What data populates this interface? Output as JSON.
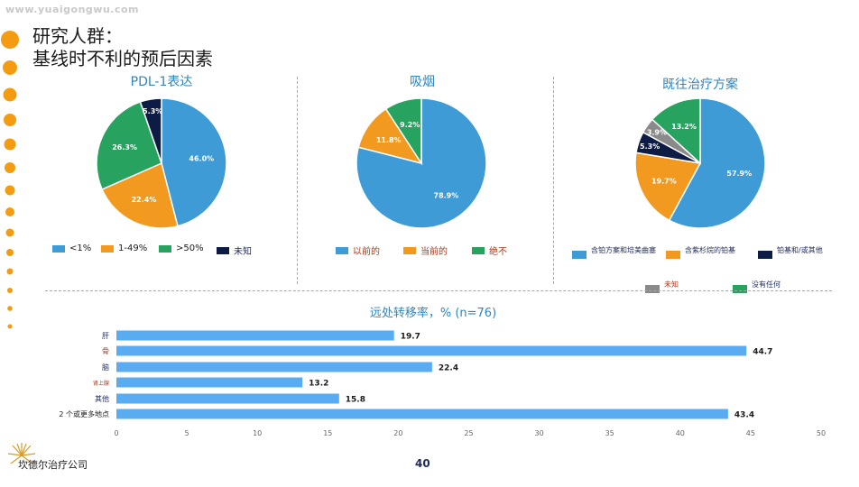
{
  "watermark": "www.yuaigongwu.com",
  "slide": {
    "title_line1": "研究人群：",
    "title_line2": "基线时不利的预后因素",
    "page_number": "40",
    "company_name": "坎德尔治疗公司"
  },
  "colors": {
    "blue": "#3f9bd6",
    "orange": "#f29a1f",
    "green": "#27a35f",
    "navy": "#0d1c44",
    "gray": "#8a8a8a",
    "bar": "#5aacf2",
    "dot": "#f39c12"
  },
  "chart_data": [
    {
      "type": "pie",
      "title": "PDL-1表达",
      "slices": [
        {
          "label": "<1%",
          "value": 46.0,
          "value_label": "46.0%",
          "color": "#3f9bd6"
        },
        {
          "label": "1-49%",
          "value": 22.4,
          "value_label": "22.4%",
          "color": "#f29a1f"
        },
        {
          "label": ">50%",
          "value": 26.3,
          "value_label": "26.3%",
          "color": "#27a35f"
        },
        {
          "label": "未知",
          "value": 5.3,
          "value_label": "5.3%",
          "color": "#0d1c44"
        }
      ]
    },
    {
      "type": "pie",
      "title": "吸烟",
      "slices": [
        {
          "label": "以前的",
          "value": 78.9,
          "value_label": "78.9%",
          "color": "#3f9bd6"
        },
        {
          "label": "当前的",
          "value": 11.8,
          "value_label": "11.8%",
          "color": "#f29a1f"
        },
        {
          "label": "绝不",
          "value": 9.2,
          "value_label": "9.2%",
          "color": "#27a35f"
        }
      ]
    },
    {
      "type": "pie",
      "title": "既往治疗方案",
      "slices": [
        {
          "label": "含铂方案和培美曲塞",
          "value": 57.9,
          "value_label": "57.9%",
          "color": "#3f9bd6"
        },
        {
          "label": "含紫杉烷的铂基",
          "value": 19.7,
          "value_label": "19.7%",
          "color": "#f29a1f"
        },
        {
          "label": "铂基和/或其他",
          "value": 5.3,
          "value_label": "5.3%",
          "color": "#0d1c44"
        },
        {
          "label": "未知",
          "value": 3.9,
          "value_label": "3.9%",
          "color": "#8a8a8a"
        },
        {
          "label": "没有任何",
          "value": 13.2,
          "value_label": "13.2%",
          "color": "#27a35f"
        }
      ]
    },
    {
      "type": "bar",
      "orientation": "horizontal",
      "title": "远处转移率，% (n=76)",
      "categories": [
        "肝",
        "骨",
        "脑",
        "肾上腺",
        "其他",
        "2 个或更多地点"
      ],
      "values": [
        19.7,
        44.7,
        22.4,
        13.2,
        15.8,
        43.4
      ],
      "value_labels": [
        "19.7",
        "44.7",
        "22.4",
        "13.2",
        "15.8",
        "43.4"
      ],
      "xlim": [
        0,
        50
      ],
      "xticks": [
        "0",
        "5",
        "10",
        "15",
        "20",
        "25",
        "30",
        "35",
        "40",
        "45",
        "50"
      ],
      "grid": false
    }
  ]
}
